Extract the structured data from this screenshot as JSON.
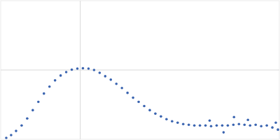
{
  "chart_data": {
    "type": "scatter",
    "x": [
      0.007,
      0.0131,
      0.0193,
      0.0263,
      0.0333,
      0.0403,
      0.0473,
      0.0543,
      0.0613,
      0.0683,
      0.0753,
      0.0823,
      0.0893,
      0.0963,
      0.1033,
      0.1103,
      0.1173,
      0.1243,
      0.1313,
      0.1383,
      0.1453,
      0.1523,
      0.1593,
      0.1663,
      0.1733,
      0.1803,
      0.1873,
      0.1943,
      0.2013,
      0.2083,
      0.2153,
      0.2223,
      0.2293,
      0.2363,
      0.2433,
      0.2503,
      0.2573,
      0.2643,
      0.2713,
      0.2783,
      0.2853,
      0.2923,
      0.2993,
      0.3063,
      0.3133,
      0.3203,
      0.3273,
      0.3343,
      0.3413,
      0.3483,
      0.2931,
      0.28,
      0.3106,
      0.2625,
      0.3456
    ],
    "values": [
      0.02,
      0.06,
      0.12,
      0.2,
      0.3,
      0.42,
      0.54,
      0.66,
      0.76,
      0.85,
      0.92,
      0.97,
      1.005,
      1.02,
      1.025,
      1.02,
      1.0,
      0.96,
      0.91,
      0.86,
      0.8,
      0.74,
      0.67,
      0.6,
      0.54,
      0.48,
      0.42,
      0.37,
      0.33,
      0.29,
      0.26,
      0.24,
      0.22,
      0.21,
      0.2,
      0.2,
      0.2,
      0.19,
      0.2,
      0.2,
      0.2,
      0.21,
      0.22,
      0.21,
      0.2,
      0.21,
      0.19,
      0.2,
      0.17,
      0.14,
      0.32,
      0.1,
      0.28,
      0.27,
      0.24
    ],
    "color": "#3a64b0",
    "xlim": [
      0,
      0.35
    ],
    "xticks": [
      0.1
    ],
    "ylim": [
      0,
      2
    ],
    "yticks": [
      1
    ],
    "grid": true,
    "tick_labels": false,
    "marker": "circle"
  }
}
